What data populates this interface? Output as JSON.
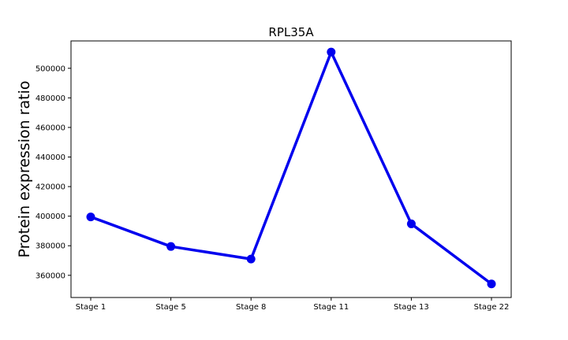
{
  "chart_data": {
    "type": "line",
    "title": "RPL35A",
    "xlabel": "",
    "ylabel": "Protein expression ratio",
    "categories": [
      "Stage 1",
      "Stage 5",
      "Stage 8",
      "Stage 11",
      "Stage 13",
      "Stage 22"
    ],
    "series": [
      {
        "values": [
          399500,
          379500,
          371000,
          511000,
          394800,
          354200
        ]
      }
    ],
    "yticks": [
      360000,
      380000,
      400000,
      420000,
      440000,
      460000,
      480000,
      500000
    ],
    "ytick_labels": [
      "360000",
      "380000",
      "400000",
      "420000",
      "440000",
      "460000",
      "480000",
      "500000"
    ],
    "ylim": [
      345000,
      518500
    ],
    "grid": false,
    "line_color": "#0000ee",
    "marker_color": "#0000ee"
  }
}
